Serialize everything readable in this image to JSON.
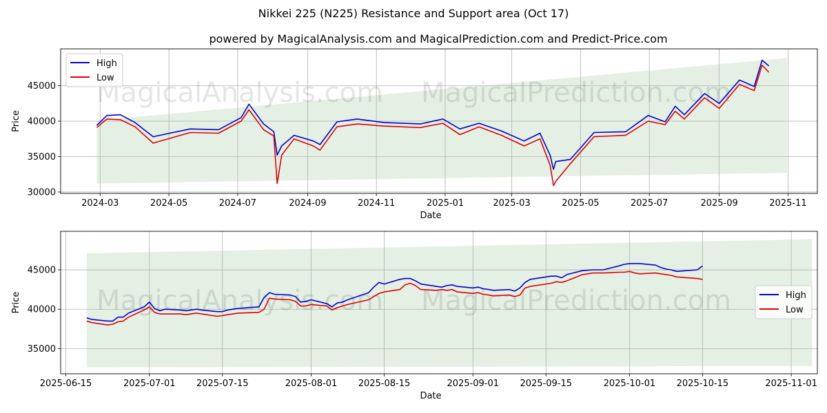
{
  "title": "Nikkei 225 (N225) Resistance and Support area (Oct 17)",
  "subtitle": "powered by MagicalAnalysis.com and MagicalPrediction.com and Predict-Price.com",
  "watermarks": [
    "MagicalAnalysis.com",
    "MagicalPrediction.com"
  ],
  "colors": {
    "high": "#0000cc",
    "low": "#dd0000",
    "band": "#2e8b2e",
    "grid": "#b0b0b0"
  },
  "chart_data": [
    {
      "type": "line",
      "xlabel": "Date",
      "ylabel": "Price",
      "xlim": [
        "2024-01-26",
        "2025-11-27"
      ],
      "ylim": [
        29800,
        50200
      ],
      "xticks": [
        "2024-03",
        "2024-05",
        "2024-07",
        "2024-09",
        "2024-11",
        "2025-01",
        "2025-03",
        "2025-05",
        "2025-07",
        "2025-09",
        "2025-11"
      ],
      "yticks": [
        30000,
        35000,
        40000,
        45000
      ],
      "grid": true,
      "legend": "top-left",
      "band": {
        "x": [
          "2024-02-27",
          "2025-10-31"
        ],
        "upper": [
          40100,
          48900
        ],
        "lower": [
          31200,
          32700
        ]
      },
      "series": [
        {
          "name": "High",
          "x": [
            "2024-02-27",
            "2024-03-07",
            "2024-03-19",
            "2024-04-01",
            "2024-04-17",
            "2024-05-20",
            "2024-06-14",
            "2024-07-04",
            "2024-07-11",
            "2024-07-24",
            "2024-08-02",
            "2024-08-05",
            "2024-08-09",
            "2024-08-20",
            "2024-09-06",
            "2024-09-12",
            "2024-09-27",
            "2024-10-15",
            "2024-11-08",
            "2024-12-10",
            "2024-12-30",
            "2025-01-14",
            "2025-01-31",
            "2025-02-20",
            "2025-03-12",
            "2025-03-26",
            "2025-04-04",
            "2025-04-07",
            "2025-04-09",
            "2025-04-22",
            "2025-05-13",
            "2025-06-10",
            "2025-06-30",
            "2025-07-15",
            "2025-07-24",
            "2025-08-01",
            "2025-08-19",
            "2025-09-01",
            "2025-09-19",
            "2025-10-02",
            "2025-10-09",
            "2025-10-15"
          ],
          "values": [
            39400,
            40800,
            40900,
            39800,
            37800,
            38900,
            38800,
            40500,
            42400,
            39600,
            38500,
            35200,
            36500,
            38000,
            37200,
            36700,
            39900,
            40300,
            39800,
            39600,
            40300,
            38900,
            39700,
            38600,
            37200,
            38300,
            35200,
            33200,
            34300,
            34600,
            38400,
            38500,
            40800,
            39900,
            42100,
            40900,
            43900,
            42500,
            45800,
            44900,
            48600,
            47800
          ]
        },
        {
          "name": "Low",
          "x": [
            "2024-02-27",
            "2024-03-07",
            "2024-03-19",
            "2024-04-01",
            "2024-04-17",
            "2024-05-20",
            "2024-06-14",
            "2024-07-04",
            "2024-07-11",
            "2024-07-24",
            "2024-08-02",
            "2024-08-05",
            "2024-08-09",
            "2024-08-20",
            "2024-09-06",
            "2024-09-12",
            "2024-09-27",
            "2024-10-15",
            "2024-11-08",
            "2024-12-10",
            "2024-12-30",
            "2025-01-14",
            "2025-01-31",
            "2025-02-20",
            "2025-03-12",
            "2025-03-26",
            "2025-04-04",
            "2025-04-07",
            "2025-04-09",
            "2025-04-22",
            "2025-05-13",
            "2025-06-10",
            "2025-06-30",
            "2025-07-15",
            "2025-07-24",
            "2025-08-01",
            "2025-08-19",
            "2025-09-01",
            "2025-09-19",
            "2025-10-02",
            "2025-10-09",
            "2025-10-15"
          ],
          "values": [
            39100,
            40300,
            40200,
            39200,
            36900,
            38400,
            38300,
            40000,
            41600,
            38800,
            37900,
            31200,
            35200,
            37500,
            36500,
            35900,
            39200,
            39600,
            39300,
            39100,
            39700,
            38100,
            39200,
            38000,
            36500,
            37500,
            33800,
            30900,
            31500,
            34000,
            37800,
            38000,
            40000,
            39500,
            41400,
            40300,
            43300,
            41800,
            45200,
            44300,
            47900,
            46900
          ]
        }
      ]
    },
    {
      "type": "line",
      "xlabel": "Date",
      "ylabel": "Price",
      "xlim": [
        "2025-06-14",
        "2025-11-06"
      ],
      "ylim": [
        31800,
        49900
      ],
      "xticks": [
        "2025-06-15",
        "2025-07-01",
        "2025-07-15",
        "2025-08-01",
        "2025-08-15",
        "2025-09-01",
        "2025-09-15",
        "2025-10-01",
        "2025-10-15",
        "2025-11-01"
      ],
      "yticks": [
        35000,
        40000,
        45000
      ],
      "grid": true,
      "legend": "right",
      "band": {
        "x": [
          "2025-06-19",
          "2025-11-05"
        ],
        "upper": [
          47100,
          48900
        ],
        "lower": [
          32600,
          32800
        ]
      },
      "series": [
        {
          "name": "High",
          "x": [
            "2025-06-19",
            "2025-06-20",
            "2025-06-23",
            "2025-06-24",
            "2025-06-25",
            "2025-06-26",
            "2025-06-27",
            "2025-06-30",
            "2025-07-01",
            "2025-07-02",
            "2025-07-03",
            "2025-07-04",
            "2025-07-07",
            "2025-07-08",
            "2025-07-09",
            "2025-07-10",
            "2025-07-11",
            "2025-07-14",
            "2025-07-15",
            "2025-07-16",
            "2025-07-17",
            "2025-07-18",
            "2025-07-22",
            "2025-07-23",
            "2025-07-24",
            "2025-07-25",
            "2025-07-28",
            "2025-07-29",
            "2025-07-30",
            "2025-07-31",
            "2025-08-01",
            "2025-08-04",
            "2025-08-05",
            "2025-08-06",
            "2025-08-07",
            "2025-08-08",
            "2025-08-12",
            "2025-08-13",
            "2025-08-14",
            "2025-08-15",
            "2025-08-18",
            "2025-08-19",
            "2025-08-20",
            "2025-08-21",
            "2025-08-22",
            "2025-08-25",
            "2025-08-26",
            "2025-08-27",
            "2025-08-28",
            "2025-08-29",
            "2025-09-01",
            "2025-09-02",
            "2025-09-03",
            "2025-09-04",
            "2025-09-05",
            "2025-09-08",
            "2025-09-09",
            "2025-09-10",
            "2025-09-11",
            "2025-09-12",
            "2025-09-16",
            "2025-09-17",
            "2025-09-18",
            "2025-09-19",
            "2025-09-22",
            "2025-09-24",
            "2025-09-25",
            "2025-09-26",
            "2025-09-29",
            "2025-09-30",
            "2025-10-01",
            "2025-10-02",
            "2025-10-03",
            "2025-10-06",
            "2025-10-07",
            "2025-10-08",
            "2025-10-09",
            "2025-10-10",
            "2025-10-14",
            "2025-10-15"
          ],
          "values": [
            38900,
            38700,
            38500,
            38500,
            39000,
            39000,
            39500,
            40300,
            40900,
            40100,
            39800,
            40000,
            39900,
            39800,
            39900,
            40000,
            39900,
            39700,
            39700,
            39900,
            40000,
            40100,
            40300,
            41500,
            42100,
            41900,
            41800,
            41600,
            40900,
            41000,
            41200,
            40700,
            40300,
            40800,
            40900,
            41200,
            42100,
            42800,
            43400,
            43200,
            43800,
            43900,
            43900,
            43600,
            43200,
            42900,
            42800,
            43000,
            43100,
            42900,
            42700,
            42800,
            42600,
            42500,
            42400,
            42500,
            42300,
            42700,
            43400,
            43800,
            44200,
            44200,
            44000,
            44400,
            44900,
            45000,
            45000,
            45000,
            45500,
            45700,
            45800,
            45800,
            45800,
            45600,
            45300,
            45100,
            45000,
            44800,
            45000,
            45500
          ]
        },
        {
          "name": "Low",
          "x": [
            "2025-06-19",
            "2025-06-20",
            "2025-06-23",
            "2025-06-24",
            "2025-06-25",
            "2025-06-26",
            "2025-06-27",
            "2025-06-30",
            "2025-07-01",
            "2025-07-02",
            "2025-07-03",
            "2025-07-04",
            "2025-07-07",
            "2025-07-08",
            "2025-07-09",
            "2025-07-10",
            "2025-07-11",
            "2025-07-14",
            "2025-07-15",
            "2025-07-16",
            "2025-07-17",
            "2025-07-18",
            "2025-07-22",
            "2025-07-23",
            "2025-07-24",
            "2025-07-25",
            "2025-07-28",
            "2025-07-29",
            "2025-07-30",
            "2025-07-31",
            "2025-08-01",
            "2025-08-04",
            "2025-08-05",
            "2025-08-06",
            "2025-08-07",
            "2025-08-08",
            "2025-08-12",
            "2025-08-13",
            "2025-08-14",
            "2025-08-15",
            "2025-08-18",
            "2025-08-19",
            "2025-08-20",
            "2025-08-21",
            "2025-08-22",
            "2025-08-25",
            "2025-08-26",
            "2025-08-27",
            "2025-08-28",
            "2025-08-29",
            "2025-09-01",
            "2025-09-02",
            "2025-09-03",
            "2025-09-04",
            "2025-09-05",
            "2025-09-08",
            "2025-09-09",
            "2025-09-10",
            "2025-09-11",
            "2025-09-12",
            "2025-09-16",
            "2025-09-17",
            "2025-09-18",
            "2025-09-19",
            "2025-09-22",
            "2025-09-24",
            "2025-09-25",
            "2025-09-26",
            "2025-09-29",
            "2025-09-30",
            "2025-10-01",
            "2025-10-02",
            "2025-10-03",
            "2025-10-06",
            "2025-10-07",
            "2025-10-08",
            "2025-10-09",
            "2025-10-10",
            "2025-10-14",
            "2025-10-15"
          ],
          "values": [
            38500,
            38300,
            38000,
            38100,
            38400,
            38500,
            39000,
            39900,
            40300,
            39600,
            39400,
            39400,
            39400,
            39300,
            39400,
            39500,
            39400,
            39100,
            39200,
            39300,
            39400,
            39500,
            39600,
            40000,
            41400,
            41300,
            41200,
            41000,
            40400,
            40400,
            40600,
            40400,
            39900,
            40200,
            40400,
            40600,
            41200,
            41600,
            42000,
            42200,
            42500,
            43100,
            43300,
            43000,
            42500,
            42400,
            42500,
            42400,
            42500,
            42200,
            42000,
            42100,
            41900,
            41800,
            41700,
            41800,
            41600,
            41800,
            42700,
            42900,
            43300,
            43500,
            43400,
            43600,
            44400,
            44600,
            44600,
            44600,
            44700,
            44700,
            44800,
            44600,
            44500,
            44600,
            44500,
            44400,
            44300,
            44100,
            43900,
            43800
          ]
        }
      ]
    }
  ]
}
